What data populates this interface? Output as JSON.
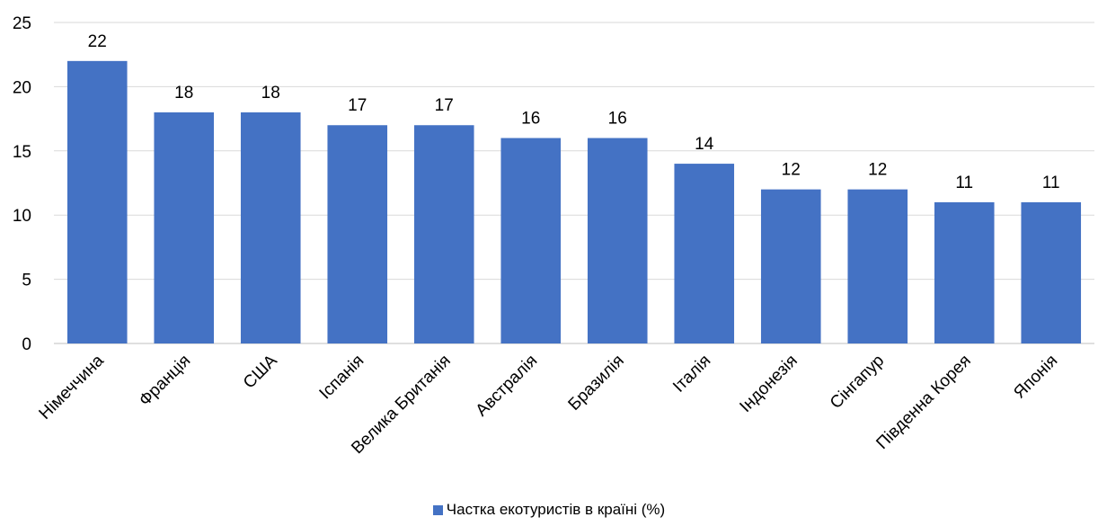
{
  "chart_data": {
    "type": "bar",
    "categories": [
      "Німеччина",
      "Франція",
      "США",
      "Іспанія",
      "Велика Британія",
      "Австралія",
      "Бразилія",
      "Італія",
      "Індонезія",
      "Сінгапур",
      "Південна Корея",
      "Японія"
    ],
    "series": [
      {
        "name": "Частка екотуристів в країні (%)",
        "values": [
          22,
          18,
          18,
          17,
          17,
          16,
          16,
          14,
          12,
          12,
          11,
          11
        ],
        "color": "#4472C4"
      }
    ],
    "ylim": [
      0,
      25
    ],
    "yticks": [
      0,
      5,
      10,
      15,
      20,
      25
    ],
    "grid": true,
    "data_labels": true,
    "legend_position": "bottom",
    "gridline_color": "#D9D9D9"
  },
  "legend": {
    "label": "Частка екотуристів в країні (%)"
  }
}
